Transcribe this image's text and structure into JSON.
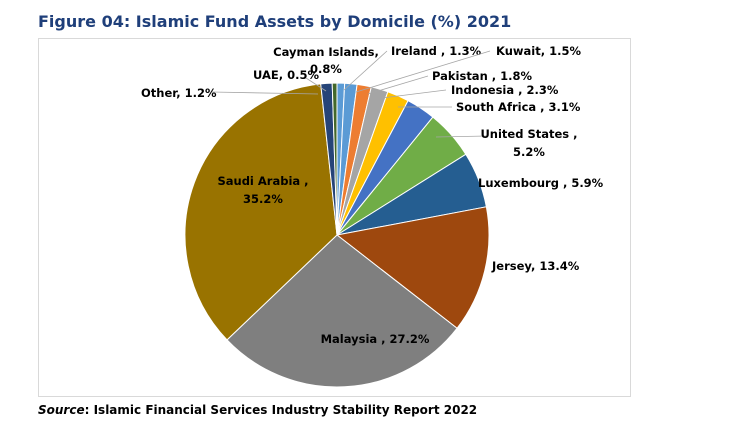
{
  "figure": {
    "title": "Figure 04: Islamic Fund Assets by Domicile (%) 2021",
    "source_prefix": "Source",
    "source_text": ": Islamic Financial Services Industry Stability Report 2022"
  },
  "chart_data": {
    "type": "pie",
    "title": "Figure 04: Islamic Fund Assets by Domicile (%) 2021",
    "unit": "%",
    "start": "12 o'clock, clockwise",
    "slices": [
      {
        "name": "Cayman Islands",
        "value": 0.8,
        "color": "#5b9bd5",
        "label_lines": [
          "Cayman Islands,",
          "0.8%"
        ]
      },
      {
        "name": "Ireland",
        "value": 1.3,
        "color": "#5b9bd5",
        "label_lines": [
          "Ireland , 1.3%"
        ]
      },
      {
        "name": "Kuwait",
        "value": 1.5,
        "color": "#ed7d31",
        "label_lines": [
          "Kuwait, 1.5%"
        ]
      },
      {
        "name": "Pakistan",
        "value": 1.8,
        "color": "#a5a5a5",
        "label_lines": [
          "Pakistan , 1.8%"
        ]
      },
      {
        "name": "Indonesia",
        "value": 2.3,
        "color": "#ffc000",
        "label_lines": [
          "Indonesia , 2.3%"
        ]
      },
      {
        "name": "South Africa",
        "value": 3.1,
        "color": "#4472c4",
        "label_lines": [
          "South Africa , 3.1%"
        ]
      },
      {
        "name": "United States",
        "value": 5.2,
        "color": "#70ad47",
        "label_lines": [
          "United States ,",
          "5.2%"
        ]
      },
      {
        "name": "Luxembourg",
        "value": 5.9,
        "color": "#255e91",
        "label_lines": [
          "Luxembourg , 5.9%"
        ]
      },
      {
        "name": "Jersey",
        "value": 13.4,
        "color": "#9e480e",
        "label_lines": [
          "Jersey, 13.4%"
        ]
      },
      {
        "name": "Malaysia",
        "value": 27.2,
        "color": "#7f7f7f",
        "label_lines": [
          "Malaysia , 27.2%"
        ]
      },
      {
        "name": "Saudi Arabia",
        "value": 35.2,
        "color": "#997300",
        "label_lines": [
          "Saudi Arabia ,",
          "35.2%"
        ]
      },
      {
        "name": "Other",
        "value": 1.2,
        "color": "#264478",
        "label_lines": [
          "Other, 1.2%"
        ]
      },
      {
        "name": "UAE",
        "value": 0.5,
        "color": "#43682b",
        "label_lines": [
          "UAE, 0.5%"
        ]
      }
    ]
  }
}
